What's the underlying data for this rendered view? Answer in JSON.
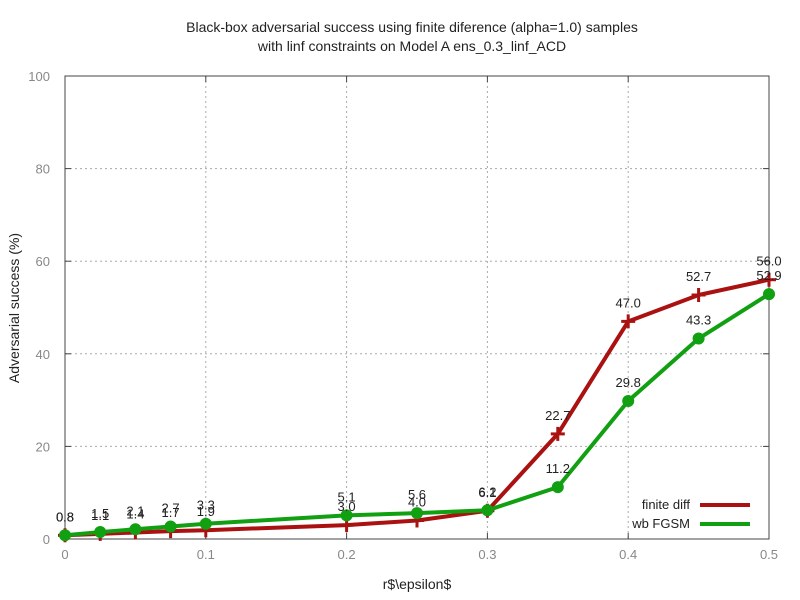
{
  "chart_data": {
    "type": "line",
    "title": [
      "Black-box adversarial success using finite diference (alpha=1.0) samples",
      "with linf constraints on Model A ens_0.3_linf_ACD"
    ],
    "xlabel": "r$\\epsilon$",
    "ylabel": "Adversarial success (%)",
    "xlim": [
      0,
      0.5
    ],
    "ylim": [
      0,
      100
    ],
    "xticks": [
      "0",
      "0.1",
      "0.2",
      "0.3",
      "0.4",
      "0.5"
    ],
    "yticks": [
      "0",
      "20",
      "40",
      "60",
      "80",
      "100"
    ],
    "grid": true,
    "legend_position": "bottom-right",
    "x": [
      0.0,
      0.025,
      0.05,
      0.075,
      0.1,
      0.2,
      0.25,
      0.3,
      0.35,
      0.4,
      0.45,
      0.5
    ],
    "series": [
      {
        "name": "finite diff",
        "color": "#aa1111",
        "marker": "plus",
        "values": [
          0.8,
          1.1,
          1.4,
          1.7,
          1.9,
          3.0,
          4.0,
          6.1,
          22.7,
          47.0,
          52.7,
          56.0
        ],
        "labels": [
          "0.8",
          "1.1",
          "1.4",
          "1.7",
          "1.9",
          "3.0",
          "4.0",
          "6.1",
          "22.7",
          "47.0",
          "52.7",
          "56.0"
        ]
      },
      {
        "name": "wb FGSM",
        "color": "#11a011",
        "marker": "circle",
        "values": [
          0.8,
          1.5,
          2.1,
          2.7,
          3.3,
          5.1,
          5.6,
          6.2,
          11.2,
          29.8,
          43.3,
          52.9
        ],
        "labels": [
          "0.8",
          "1.5",
          "2.1",
          "2.7",
          "3.3",
          "5.1",
          "5.6",
          "6.2",
          "11.2",
          "29.8",
          "43.3",
          "52.9"
        ]
      }
    ]
  }
}
